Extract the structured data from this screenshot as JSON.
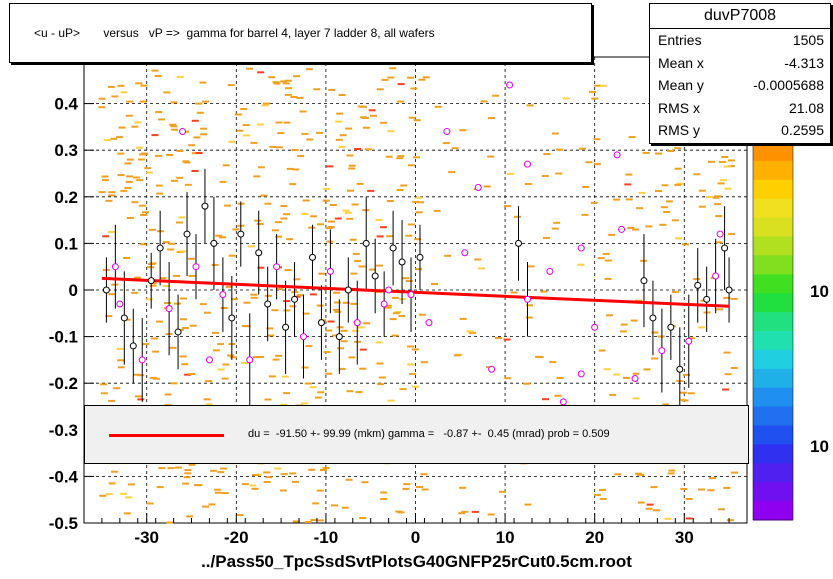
{
  "title": "<u - uP>       versus   vP =>  gamma for barrel 4, layer 7 ladder 8, all wafers",
  "stats": {
    "name": "duvP7008",
    "rows": [
      {
        "key": "Entries",
        "value": "1505"
      },
      {
        "key": "Mean x",
        "value": "-4.313"
      },
      {
        "key": "Mean y",
        "value": "-0.0005688"
      },
      {
        "key": "RMS x",
        "value": "21.08"
      },
      {
        "key": "RMS y",
        "value": "0.2595"
      }
    ]
  },
  "fit_legend": "du =  -91.50 +- 99.99 (mkm) gamma =   -0.87 +-  0.45 (mrad) prob = 0.509",
  "file_label": "../Pass50_TpcSsdSvtPlotsG40GNFP25rCut0.5cm.root",
  "palette_labels": [
    "10",
    "10"
  ],
  "chart_data": {
    "type": "scatter",
    "xlim": [
      -37,
      37
    ],
    "ylim": [
      -0.5,
      0.5
    ],
    "x_ticks": [
      -30,
      -20,
      -10,
      0,
      10,
      20,
      30
    ],
    "y_ticks": [
      0.4,
      0.3,
      0.2,
      0.1,
      0,
      -0.1,
      -0.2,
      -0.3,
      -0.4,
      -0.5
    ],
    "x_tick_labels": [
      "-30",
      "-20",
      "-10",
      "0",
      "10",
      "20",
      "30"
    ],
    "y_tick_labels": [
      "0.4",
      "0.3",
      "0.2",
      "0.1",
      "0",
      "-0.1",
      "-0.2",
      "-0.3",
      "-0.4",
      "-0.5"
    ],
    "grid": true,
    "fit_line": {
      "x": [
        -35,
        35
      ],
      "y": [
        0.025,
        -0.035
      ],
      "color": "#ff0000"
    },
    "colors": {
      "histogram": "#f0a020",
      "profile_black": "#000000",
      "profile_magenta": "#e000e0",
      "fit": "#ff0000"
    },
    "profile_points": [
      {
        "x": -34.5,
        "y": 0.0,
        "e": 0.07
      },
      {
        "x": -33.5,
        "y": 0.05,
        "e": 0.09
      },
      {
        "x": -32.5,
        "y": -0.06,
        "e": 0.1
      },
      {
        "x": -31.5,
        "y": -0.12,
        "e": 0.08
      },
      {
        "x": -30.5,
        "y": -0.15,
        "e": 0.09
      },
      {
        "x": -29.5,
        "y": 0.02,
        "e": 0.06
      },
      {
        "x": -28.5,
        "y": 0.09,
        "e": 0.08
      },
      {
        "x": -27.5,
        "y": -0.04,
        "e": 0.1
      },
      {
        "x": -26.5,
        "y": -0.09,
        "e": 0.08
      },
      {
        "x": -25.5,
        "y": 0.12,
        "e": 0.09
      },
      {
        "x": -24.5,
        "y": 0.05,
        "e": 0.07
      },
      {
        "x": -23.5,
        "y": 0.18,
        "e": 0.08
      },
      {
        "x": -22.5,
        "y": 0.1,
        "e": 0.1
      },
      {
        "x": -21.5,
        "y": -0.01,
        "e": 0.08
      },
      {
        "x": -20.5,
        "y": -0.06,
        "e": 0.09
      },
      {
        "x": -19.5,
        "y": 0.12,
        "e": 0.07
      },
      {
        "x": -18.5,
        "y": -0.15,
        "e": 0.1
      },
      {
        "x": -17.5,
        "y": 0.08,
        "e": 0.09
      },
      {
        "x": -16.5,
        "y": -0.03,
        "e": 0.08
      },
      {
        "x": -15.5,
        "y": 0.05,
        "e": 0.07
      },
      {
        "x": -14.5,
        "y": -0.08,
        "e": 0.1
      },
      {
        "x": -13.5,
        "y": -0.02,
        "e": 0.08
      },
      {
        "x": -12.5,
        "y": -0.1,
        "e": 0.09
      },
      {
        "x": -11.5,
        "y": 0.07,
        "e": 0.07
      },
      {
        "x": -10.5,
        "y": -0.07,
        "e": 0.08
      },
      {
        "x": -9.5,
        "y": 0.04,
        "e": 0.09
      },
      {
        "x": -8.5,
        "y": -0.1,
        "e": 0.08
      },
      {
        "x": -7.5,
        "y": 0.0,
        "e": 0.07
      },
      {
        "x": -6.5,
        "y": -0.07,
        "e": 0.09
      },
      {
        "x": -5.5,
        "y": 0.1,
        "e": 0.1
      },
      {
        "x": -4.5,
        "y": 0.03,
        "e": 0.08
      },
      {
        "x": -3.5,
        "y": -0.03,
        "e": 0.07
      },
      {
        "x": -2.5,
        "y": 0.09,
        "e": 0.08
      },
      {
        "x": -1.5,
        "y": 0.06,
        "e": 0.09
      },
      {
        "x": -0.5,
        "y": -0.01,
        "e": 0.08
      },
      {
        "x": 0.5,
        "y": 0.07,
        "e": 0.07
      },
      {
        "x": 11.5,
        "y": 0.1,
        "e": 0.08
      },
      {
        "x": 12.5,
        "y": -0.02,
        "e": 0.08
      },
      {
        "x": 25.5,
        "y": 0.02,
        "e": 0.1
      },
      {
        "x": 26.5,
        "y": -0.06,
        "e": 0.08
      },
      {
        "x": 27.5,
        "y": -0.13,
        "e": 0.09
      },
      {
        "x": 28.5,
        "y": -0.08,
        "e": 0.07
      },
      {
        "x": 29.5,
        "y": -0.17,
        "e": 0.09
      },
      {
        "x": 30.5,
        "y": -0.11,
        "e": 0.1
      },
      {
        "x": 31.5,
        "y": 0.01,
        "e": 0.08
      },
      {
        "x": 32.5,
        "y": -0.02,
        "e": 0.07
      },
      {
        "x": 33.5,
        "y": 0.03,
        "e": 0.08
      },
      {
        "x": 34.5,
        "y": 0.09,
        "e": 0.09
      },
      {
        "x": 35.0,
        "y": 0.0,
        "e": 0.07
      }
    ],
    "outlier_points": [
      {
        "x": -26.0,
        "y": 0.34
      },
      {
        "x": -33.0,
        "y": -0.03
      },
      {
        "x": -23.0,
        "y": -0.15
      },
      {
        "x": -3.0,
        "y": 0.0
      },
      {
        "x": 1.5,
        "y": -0.07
      },
      {
        "x": 3.5,
        "y": 0.34
      },
      {
        "x": 5.5,
        "y": 0.08
      },
      {
        "x": 7.0,
        "y": 0.22
      },
      {
        "x": 8.5,
        "y": -0.17
      },
      {
        "x": 10.5,
        "y": 0.44
      },
      {
        "x": 12.5,
        "y": 0.27
      },
      {
        "x": 15.0,
        "y": 0.04
      },
      {
        "x": 16.5,
        "y": -0.24
      },
      {
        "x": 18.5,
        "y": -0.18
      },
      {
        "x": 18.5,
        "y": 0.09
      },
      {
        "x": 20.0,
        "y": -0.08
      },
      {
        "x": 22.5,
        "y": 0.29
      },
      {
        "x": 23.0,
        "y": 0.13
      },
      {
        "x": 24.5,
        "y": -0.19
      },
      {
        "x": 34.0,
        "y": 0.12
      }
    ]
  }
}
